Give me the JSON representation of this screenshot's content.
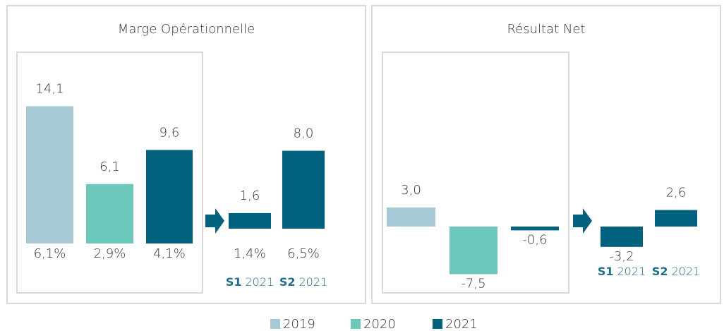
{
  "chart_data": [
    {
      "type": "bar",
      "title": "Marge Opérationnelle",
      "categories": [
        null,
        null,
        null,
        {
          "bold": "S1",
          "rest": "2021"
        },
        {
          "bold": "S2",
          "rest": "2021"
        }
      ],
      "values": [
        14.1,
        6.1,
        9.6,
        1.6,
        8.0
      ],
      "value_labels": [
        "14,1",
        "6,1",
        "9,6",
        "1,6",
        "8,0"
      ],
      "sublabels": [
        "6,1%",
        "2,9%",
        "4,1%",
        "1,4%",
        "6,5%"
      ],
      "colors": [
        "#a7c9d6",
        "#6cc8bb",
        "#00627f",
        "#00627f",
        "#00627f"
      ],
      "ylim": [
        0,
        15
      ]
    },
    {
      "type": "bar",
      "title": "Résultat Net",
      "categories": [
        null,
        null,
        null,
        {
          "bold": "S1",
          "rest": "2021"
        },
        {
          "bold": "S2",
          "rest": "2021"
        }
      ],
      "values": [
        3.0,
        -7.5,
        -0.6,
        -3.2,
        2.6
      ],
      "value_labels": [
        "3,0",
        "-7,5",
        "-0,6",
        "-3,2",
        "2,6"
      ],
      "colors": [
        "#a7c9d6",
        "#6cc8bb",
        "#00627f",
        "#00627f",
        "#00627f"
      ],
      "ylim": [
        -10,
        5
      ]
    }
  ],
  "legend": [
    {
      "name": "2019",
      "color": "#a7c9d6"
    },
    {
      "name": "2020",
      "color": "#6cc8bb"
    },
    {
      "name": "2021",
      "color": "#00627f"
    }
  ]
}
